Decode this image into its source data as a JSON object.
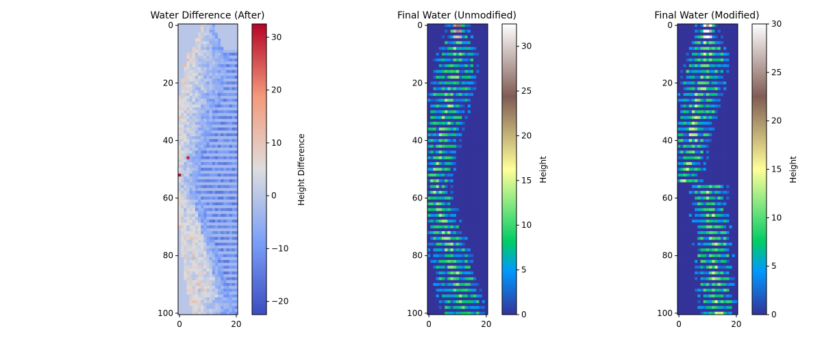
{
  "chart_data": [
    {
      "type": "heatmap",
      "title": "Water Difference (After)",
      "xlabel": "",
      "ylabel": "",
      "xlim": [
        0,
        21
      ],
      "ylim": [
        101,
        0
      ],
      "xticks": [
        0,
        20
      ],
      "yticks": [
        0,
        20,
        40,
        60,
        80,
        100
      ],
      "grid_shape": [
        101,
        21
      ],
      "colormap": "coolwarm",
      "value_range": [
        -22.5,
        32.5
      ],
      "colorbar": {
        "label": "Height Difference",
        "ticks": [
          30,
          20,
          10,
          0,
          -10,
          -20
        ],
        "tick_labels": [
          "30",
          "20",
          "10",
          "0",
          "−10",
          "−20"
        ]
      },
      "colors": {
        "low": "#3b4cc0",
        "mid": "#dddddd",
        "high": "#b40426"
      },
      "description_of_values": "near 0 outside the water body; positive (red) along the left bank rows 20-60 and lower center rows 60-95; negative (blue) along the right edge rows 10-100"
    },
    {
      "type": "heatmap",
      "title": "Final Water (Unmodified)",
      "xlabel": "",
      "ylabel": "",
      "xlim": [
        0,
        21
      ],
      "ylim": [
        101,
        0
      ],
      "xticks": [
        0,
        20
      ],
      "yticks": [
        0,
        20,
        40,
        60,
        80,
        100
      ],
      "grid_shape": [
        101,
        21
      ],
      "colormap": "terrain",
      "value_range": [
        0,
        32.5
      ],
      "colorbar": {
        "label": "Height",
        "ticks": [
          30,
          25,
          20,
          15,
          10,
          5,
          0
        ],
        "tick_labels": [
          "30",
          "25",
          "20",
          "15",
          "10",
          "5",
          "0"
        ]
      },
      "colors": {
        "background": "#333399"
      }
    },
    {
      "type": "heatmap",
      "title": "Final Water (Modified)",
      "xlabel": "",
      "ylabel": "",
      "xlim": [
        0,
        21
      ],
      "ylim": [
        101,
        0
      ],
      "xticks": [
        0,
        20
      ],
      "yticks": [
        0,
        20,
        40,
        60,
        80,
        100
      ],
      "grid_shape": [
        101,
        21
      ],
      "colormap": "terrain",
      "value_range": [
        0,
        30
      ],
      "colorbar": {
        "label": "Height",
        "ticks": [
          30,
          25,
          20,
          15,
          10,
          5,
          0
        ],
        "tick_labels": [
          "30",
          "25",
          "20",
          "15",
          "10",
          "5",
          "0"
        ]
      },
      "colors": {
        "background": "#333399"
      }
    }
  ]
}
